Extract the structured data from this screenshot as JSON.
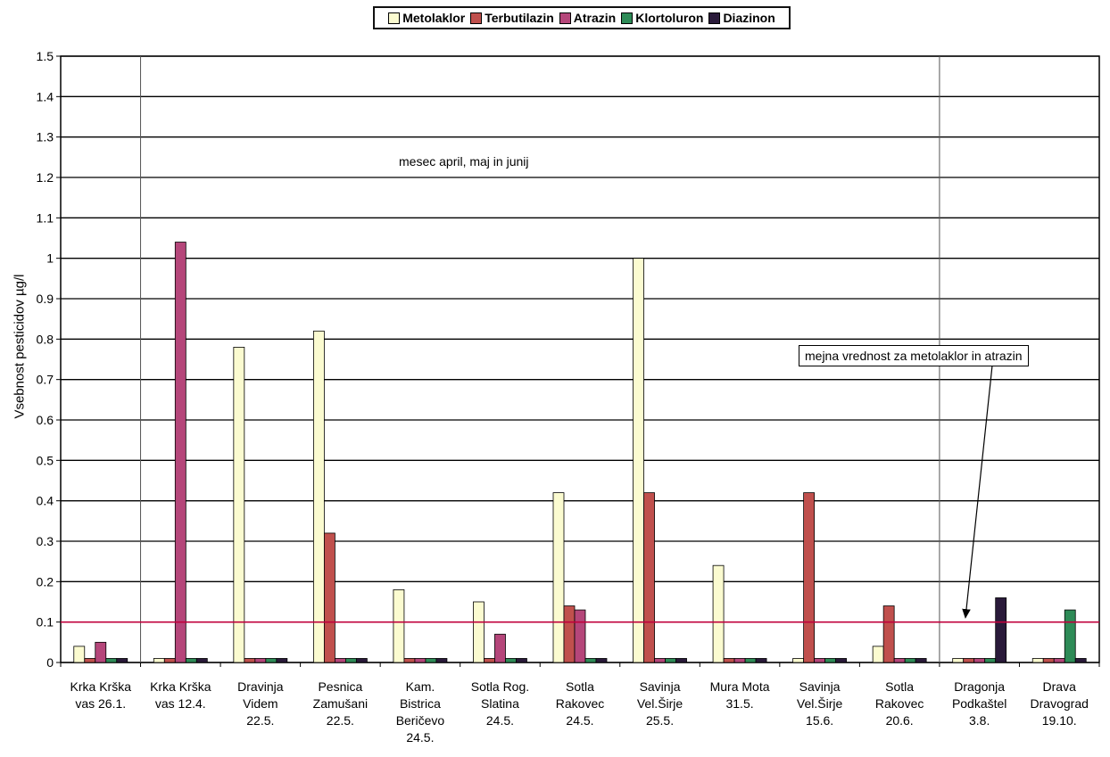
{
  "chart_data": {
    "type": "bar",
    "ylabel": "Vsebnost pesticidov µg/l",
    "ylim": [
      0,
      1.5
    ],
    "yticks": [
      "0",
      "0.1",
      "0.2",
      "0.3",
      "0.4",
      "0.5",
      "0.6",
      "0.7",
      "0.8",
      "0.9",
      "1",
      "1.1",
      "1.2",
      "1.3",
      "1.4",
      "1.5"
    ],
    "grid": true,
    "legend_position": "top-center",
    "categories": [
      "Krka Krška\nvas 26.1.",
      "Krka Krška\nvas 12.4.",
      "Dravinja\nVidem\n22.5.",
      "Pesnica\nZamušani\n22.5.",
      "Kam.\nBistrica\nBeričevo\n24.5.",
      "Sotla Rog.\nSlatina\n24.5.",
      "Sotla\nRakovec\n24.5.",
      "Savinja\nVel.Širje\n25.5.",
      "Mura Mota\n31.5.",
      "Savinja\nVel.Širje\n15.6.",
      "Sotla\nRakovec\n20.6.",
      "Dragonja\nPodkaštel\n3.8.",
      "Drava\nDravograd\n19.10."
    ],
    "series": [
      {
        "name": "Metolaklor",
        "color": "#fbfbd0",
        "values": [
          0.04,
          0.01,
          0.78,
          0.82,
          0.18,
          0.15,
          0.42,
          1.0,
          0.24,
          0.01,
          0.04,
          0.01,
          0.01
        ]
      },
      {
        "name": "Terbutilazin",
        "color": "#c0504d",
        "values": [
          0.01,
          0.01,
          0.01,
          0.32,
          0.01,
          0.01,
          0.14,
          0.42,
          0.01,
          0.42,
          0.14,
          0.01,
          0.01
        ]
      },
      {
        "name": "Atrazin",
        "color": "#b5467a",
        "values": [
          0.05,
          1.04,
          0.01,
          0.01,
          0.01,
          0.07,
          0.13,
          0.01,
          0.01,
          0.01,
          0.01,
          0.01,
          0.01
        ]
      },
      {
        "name": "Klortoluron",
        "color": "#2e8b57",
        "values": [
          0.01,
          0.01,
          0.01,
          0.01,
          0.01,
          0.01,
          0.01,
          0.01,
          0.01,
          0.01,
          0.01,
          0.01,
          0.13
        ]
      },
      {
        "name": "Diazinon",
        "color": "#2a1a3a",
        "values": [
          0.01,
          0.01,
          0.01,
          0.01,
          0.01,
          0.01,
          0.01,
          0.01,
          0.01,
          0.01,
          0.01,
          0.16,
          0.01
        ]
      }
    ],
    "limit_line": {
      "value": 0.1,
      "color": "#c0003c"
    },
    "annotations": {
      "period": "mesec april, maj in  junij",
      "limit": "mejna vrednost za metolaklor in atrazin"
    },
    "separators_after_category": [
      0,
      10
    ]
  }
}
